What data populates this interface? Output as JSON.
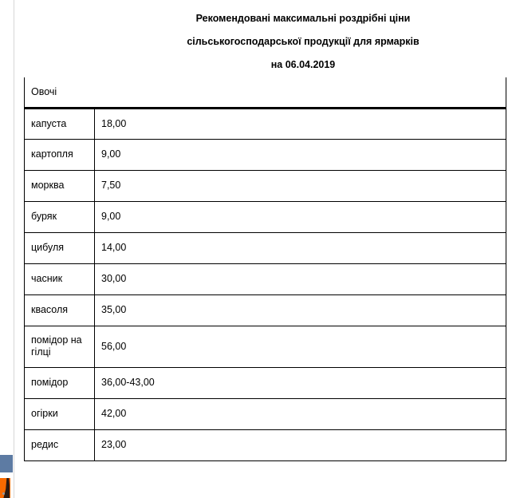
{
  "title": {
    "line1": "Рекомендовані максимальні роздрібні ціни",
    "line2": "сільськогосподарської продукції для ярмарків",
    "line3": "на 06.04.2019"
  },
  "table": {
    "section_header": "Овочі",
    "rows": [
      {
        "name": "капуста",
        "price": "18,00"
      },
      {
        "name": "картопля",
        "price": "9,00"
      },
      {
        "name": "морква",
        "price": "7,50"
      },
      {
        "name": "буряк",
        "price": "9,00"
      },
      {
        "name": "цибуля",
        "price": "14,00"
      },
      {
        "name": "часник",
        "price": "30,00"
      },
      {
        "name": "квасоля",
        "price": "35,00"
      },
      {
        "name": "помідор на гілці",
        "price": "56,00"
      },
      {
        "name": "помідор",
        "price": "36,00-43,00"
      },
      {
        "name": "огірки",
        "price": "42,00"
      },
      {
        "name": "редис",
        "price": "23,00"
      }
    ]
  },
  "colors": {
    "border": "#000000",
    "margin-line": "#d6d6d6",
    "fragment-blue": "#5d7ba3",
    "fragment-orange": "#f96a00",
    "fragment-dark": "#2b1a12",
    "fragment-dot": "#9a9a9a"
  }
}
